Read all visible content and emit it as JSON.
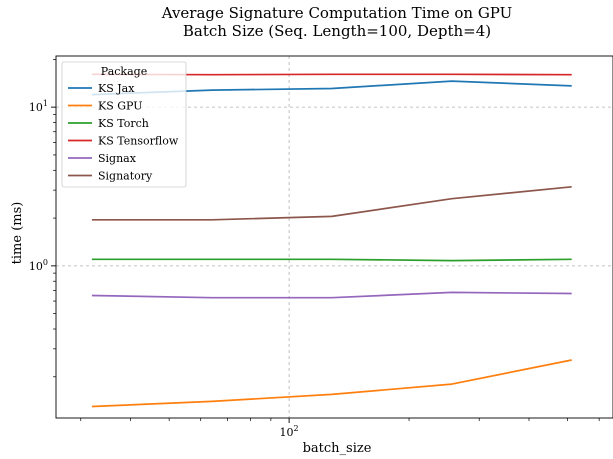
{
  "chart_data": {
    "type": "line",
    "title": "Average Signature Computation Time on GPU",
    "subtitle": "Batch Size (Seq. Length=100, Depth=4)",
    "xlabel": "batch_size",
    "ylabel": "time (ms)",
    "xscale": "log",
    "yscale": "log",
    "xlim": [
      26,
      650
    ],
    "ylim": [
      0.11,
      21
    ],
    "grid": true,
    "legend_title": "Package",
    "legend_position": "top-left",
    "x": [
      32,
      64,
      128,
      256,
      512
    ],
    "x_tick_labels": [
      {
        "value": 100,
        "base": "10",
        "exp": "2"
      }
    ],
    "y_tick_labels": [
      {
        "value": 1,
        "base": "10",
        "exp": "0"
      },
      {
        "value": 10,
        "base": "10",
        "exp": "1"
      }
    ],
    "series": [
      {
        "name": "KS Jax",
        "color": "#1f77b4",
        "values": [
          12.0,
          12.8,
          13.1,
          14.6,
          13.6
        ]
      },
      {
        "name": "KS GPU",
        "color": "#ff7f0e",
        "values": [
          0.13,
          0.14,
          0.155,
          0.18,
          0.255
        ]
      },
      {
        "name": "KS Torch",
        "color": "#2ca02c",
        "values": [
          1.1,
          1.1,
          1.1,
          1.08,
          1.1
        ]
      },
      {
        "name": "KS Tensorflow",
        "color": "#d62728",
        "values": [
          16.1,
          16.0,
          16.1,
          16.1,
          16.0
        ]
      },
      {
        "name": "Signax",
        "color": "#9467bd",
        "values": [
          0.65,
          0.63,
          0.63,
          0.68,
          0.67
        ]
      },
      {
        "name": "Signatory",
        "color": "#8c564b",
        "values": [
          1.95,
          1.95,
          2.05,
          2.65,
          3.15
        ]
      }
    ]
  }
}
